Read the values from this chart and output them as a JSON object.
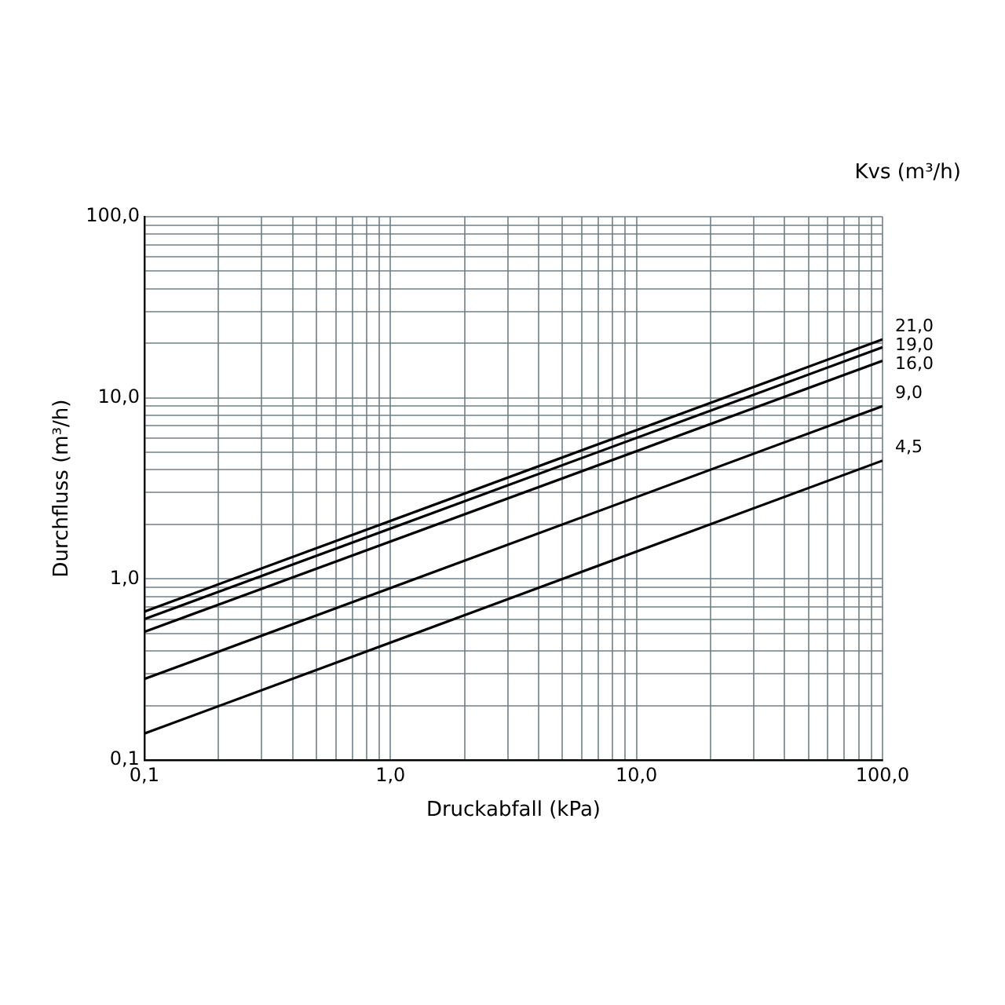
{
  "chart_data": {
    "type": "line",
    "xlabel": "Druckabfall (kPa)",
    "ylabel": "Durchfluss (m³/h)",
    "legend_title": "Kvs (m³/h)",
    "log": "xy",
    "grid": true,
    "legend": false,
    "marker": "none",
    "line_style": "solid",
    "x": [
      0.1,
      100
    ],
    "xlim": [
      0.1,
      100
    ],
    "ylim": [
      0.1,
      100
    ],
    "xticks": [
      {
        "value": 0.1,
        "label": "0,1"
      },
      {
        "value": 0.2,
        "label": null
      },
      {
        "value": 0.3,
        "label": null
      },
      {
        "value": 0.4,
        "label": null
      },
      {
        "value": 0.5,
        "label": null
      },
      {
        "value": 0.6,
        "label": null
      },
      {
        "value": 0.7,
        "label": null
      },
      {
        "value": 0.8,
        "label": null
      },
      {
        "value": 0.9,
        "label": null
      },
      {
        "value": 1,
        "label": "1,0"
      },
      {
        "value": 2,
        "label": null
      },
      {
        "value": 3,
        "label": null
      },
      {
        "value": 4,
        "label": null
      },
      {
        "value": 5,
        "label": null
      },
      {
        "value": 6,
        "label": null
      },
      {
        "value": 7,
        "label": null
      },
      {
        "value": 8,
        "label": null
      },
      {
        "value": 9,
        "label": null
      },
      {
        "value": 10,
        "label": "10,0"
      },
      {
        "value": 20,
        "label": null
      },
      {
        "value": 30,
        "label": null
      },
      {
        "value": 40,
        "label": null
      },
      {
        "value": 50,
        "label": null
      },
      {
        "value": 60,
        "label": null
      },
      {
        "value": 70,
        "label": null
      },
      {
        "value": 80,
        "label": null
      },
      {
        "value": 90,
        "label": null
      },
      {
        "value": 100,
        "label": "100,0"
      }
    ],
    "yticks": [
      {
        "value": 0.1,
        "label": "0,1"
      },
      {
        "value": 0.2,
        "label": null
      },
      {
        "value": 0.3,
        "label": null
      },
      {
        "value": 0.4,
        "label": null
      },
      {
        "value": 0.5,
        "label": null
      },
      {
        "value": 0.6,
        "label": null
      },
      {
        "value": 0.7,
        "label": null
      },
      {
        "value": 0.8,
        "label": null
      },
      {
        "value": 0.9,
        "label": null
      },
      {
        "value": 1,
        "label": "1,0"
      },
      {
        "value": 2,
        "label": null
      },
      {
        "value": 3,
        "label": null
      },
      {
        "value": 4,
        "label": null
      },
      {
        "value": 5,
        "label": null
      },
      {
        "value": 6,
        "label": null
      },
      {
        "value": 7,
        "label": null
      },
      {
        "value": 8,
        "label": null
      },
      {
        "value": 9,
        "label": null
      },
      {
        "value": 10,
        "label": "10,0"
      },
      {
        "value": 20,
        "label": null
      },
      {
        "value": 30,
        "label": null
      },
      {
        "value": 40,
        "label": null
      },
      {
        "value": 50,
        "label": null
      },
      {
        "value": 60,
        "label": null
      },
      {
        "value": 70,
        "label": null
      },
      {
        "value": 80,
        "label": null
      },
      {
        "value": 90,
        "label": null
      },
      {
        "value": 100,
        "label": "100,0"
      }
    ],
    "series": [
      {
        "name": "21,0",
        "color": "#000000",
        "values": [
          0.66,
          21
        ]
      },
      {
        "name": "19,0",
        "color": "#000000",
        "values": [
          0.6,
          19
        ]
      },
      {
        "name": "16,0",
        "color": "#000000",
        "values": [
          0.51,
          16
        ]
      },
      {
        "name": "9,0",
        "color": "#000000",
        "values": [
          0.28,
          9
        ]
      },
      {
        "name": "4,5",
        "color": "#000000",
        "values": [
          0.14,
          4.5
        ]
      }
    ]
  }
}
